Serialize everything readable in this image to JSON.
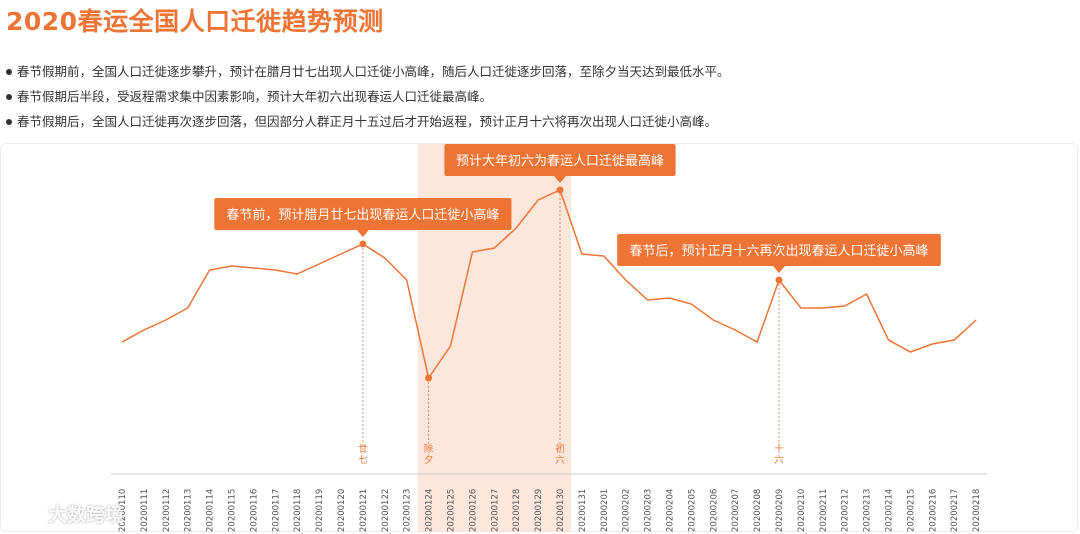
{
  "title": "2020春运全国人口迁徙趋势预测",
  "bullets": [
    "春节假期前，全国人口迁徙逐步攀升，预计在腊月廿七出现人口迁徙小高峰，随后人口迁徙逐步回落，至除夕当天达到最低水平。",
    "春节假期后半段，受返程需求集中因素影响，预计大年初六出现春运人口迁徙最高峰。",
    "春节假期后，全国人口迁徙再次逐步回落，但因部分人群正月十五过后才开始返程，预计正月十六将再次出现人口迁徙小高峰。"
  ],
  "watermark": "大数跨境",
  "colors": {
    "accent": "#ee7435",
    "shade": "#fbe3d6",
    "axis": "#999999"
  },
  "chart_data": {
    "type": "line",
    "x": [
      "20200110",
      "20200111",
      "20200112",
      "20200113",
      "20200114",
      "20200115",
      "20200116",
      "20200117",
      "20200118",
      "20200119",
      "20200120",
      "20200121",
      "20200122",
      "20200123",
      "20200124",
      "20200125",
      "20200126",
      "20200127",
      "20200128",
      "20200129",
      "20200130",
      "20200131",
      "20200201",
      "20200202",
      "20200203",
      "20200204",
      "20200205",
      "20200206",
      "20200207",
      "20200208",
      "20200209",
      "20200210",
      "20200211",
      "20200212",
      "20200213",
      "20200214",
      "20200215",
      "20200216",
      "20200217",
      "20200218"
    ],
    "values": [
      44,
      50,
      55,
      61,
      80,
      82,
      81,
      80,
      78,
      83,
      88,
      93,
      86,
      75,
      26,
      42,
      89,
      91,
      101,
      115,
      120,
      88,
      87,
      75,
      65,
      66,
      63,
      55,
      50,
      44,
      75,
      61,
      61,
      62,
      68,
      45,
      39,
      43,
      45,
      55
    ],
    "ylim": [
      0,
      140
    ],
    "shaded_range": [
      "20200124",
      "20200130"
    ],
    "markers": [
      {
        "x": "20200121",
        "tick_label": "廿七",
        "annotation": "春节前，预计腊月廿七出现春运人口迁徙小高峰"
      },
      {
        "x": "20200124",
        "tick_label": "除夕",
        "annotation": ""
      },
      {
        "x": "20200130",
        "tick_label": "初六",
        "annotation": "预计大年初六为春运人口迁徙最高峰"
      },
      {
        "x": "20200209",
        "tick_label": "十六",
        "annotation": "春节后，预计正月十六再次出现春运人口迁徙小高峰"
      }
    ]
  }
}
